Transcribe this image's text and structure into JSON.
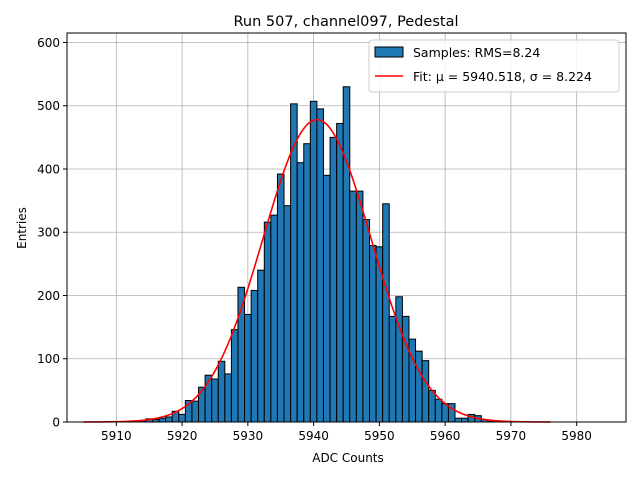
{
  "chart_data": {
    "type": "bar",
    "title": "Run 507, channel097, Pedestal",
    "xlabel": "ADC Counts",
    "ylabel": "Entries",
    "xlim": [
      5902.5,
      5987.5
    ],
    "ylim": [
      0,
      615
    ],
    "xticks": [
      5910,
      5920,
      5930,
      5940,
      5950,
      5960,
      5970,
      5980
    ],
    "yticks": [
      0,
      100,
      200,
      300,
      400,
      500,
      600
    ],
    "grid": true,
    "legend_position": "top-right",
    "bin_width": 1,
    "histogram": {
      "name": "Samples: RMS=8.24",
      "color": "#1f77b4",
      "edgecolor": "#000000",
      "bin_centers": [
        5910,
        5911,
        5912,
        5913,
        5914,
        5915,
        5916,
        5917,
        5918,
        5919,
        5920,
        5921,
        5922,
        5923,
        5924,
        5925,
        5926,
        5927,
        5928,
        5929,
        5930,
        5931,
        5932,
        5933,
        5934,
        5935,
        5936,
        5937,
        5938,
        5939,
        5940,
        5941,
        5942,
        5943,
        5944,
        5945,
        5946,
        5947,
        5948,
        5949,
        5950,
        5951,
        5952,
        5953,
        5954,
        5955,
        5956,
        5957,
        5958,
        5959,
        5960,
        5961,
        5962,
        5963,
        5964,
        5965,
        5966,
        5967
      ],
      "counts": [
        0,
        0,
        1,
        0,
        2,
        5,
        4,
        6,
        8,
        17,
        12,
        34,
        33,
        55,
        74,
        68,
        96,
        76,
        146,
        213,
        170,
        208,
        240,
        316,
        327,
        392,
        342,
        503,
        410,
        440,
        507,
        495,
        390,
        450,
        472,
        530,
        365,
        365,
        320,
        279,
        277,
        345,
        167,
        198,
        167,
        131,
        112,
        97,
        50,
        36,
        29,
        29,
        6,
        6,
        12,
        10,
        4,
        1
      ]
    },
    "fit": {
      "name": "Fit: μ = 5940.518, σ = 8.224",
      "color": "#ff0000",
      "mu": 5940.518,
      "sigma": 8.224,
      "amplitude": 478,
      "x_range": [
        5905,
        5976
      ]
    }
  }
}
